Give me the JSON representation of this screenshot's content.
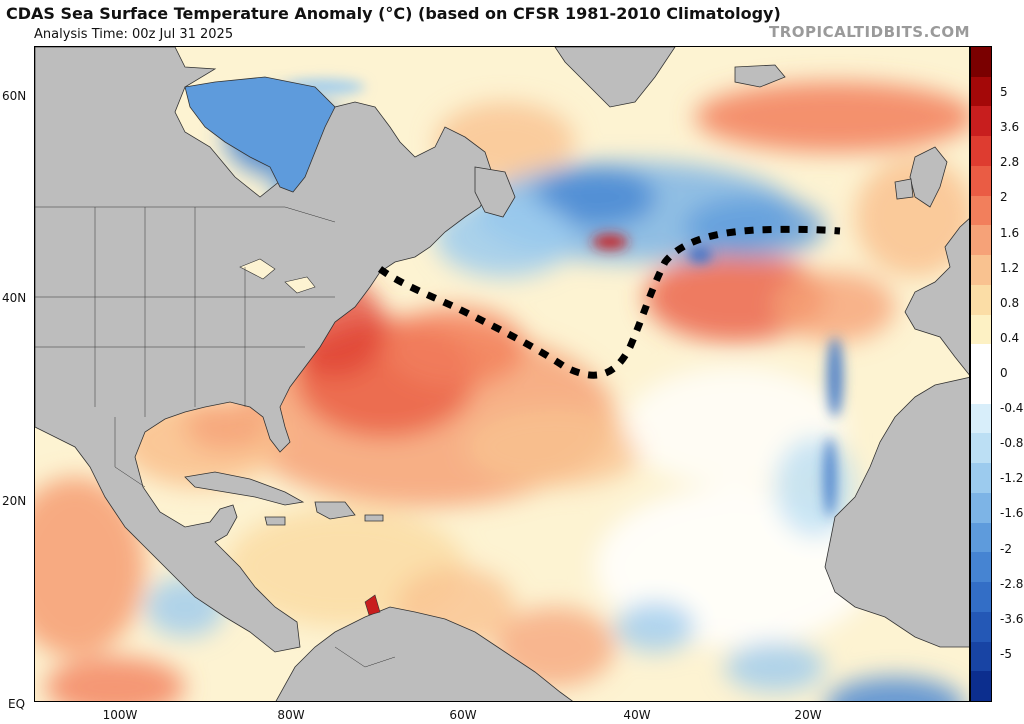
{
  "header": {
    "title": "CDAS Sea Surface Temperature Anomaly (°C) (based on CFSR 1981-2010 Climatology)",
    "subtitle": "Analysis Time: 00z Jul 31 2025",
    "brand": "TROPICALTIDBITS.COM"
  },
  "axes": {
    "lat_labels": [
      "60N",
      "40N",
      "20N",
      "EQ"
    ],
    "lon_labels": [
      "100W",
      "80W",
      "60W",
      "40W",
      "20W"
    ]
  },
  "colorbar": {
    "labels": [
      "5",
      "3.6",
      "2.8",
      "2",
      "1.6",
      "1.2",
      "0.8",
      "0.4",
      "0",
      "-0.4",
      "-0.8",
      "-1.2",
      "-1.6",
      "-2",
      "-2.8",
      "-3.6",
      "-5"
    ],
    "colors": [
      "#7a0000",
      "#a40808",
      "#c81e1e",
      "#de3c30",
      "#ea5c44",
      "#f27f5c",
      "#f6a278",
      "#f9c290",
      "#fbdda6",
      "#fdf1c4",
      "#ffffff",
      "#ffffff",
      "#d8eefa",
      "#bcdff4",
      "#9ccbee",
      "#7db4e6",
      "#5e9bdc",
      "#4684d2",
      "#336ec6",
      "#2458b6",
      "#1844a4",
      "#0c2e8e"
    ]
  },
  "land_color": "#bdbdbd",
  "annotation": {
    "type": "dotted-line",
    "color": "#000000"
  }
}
